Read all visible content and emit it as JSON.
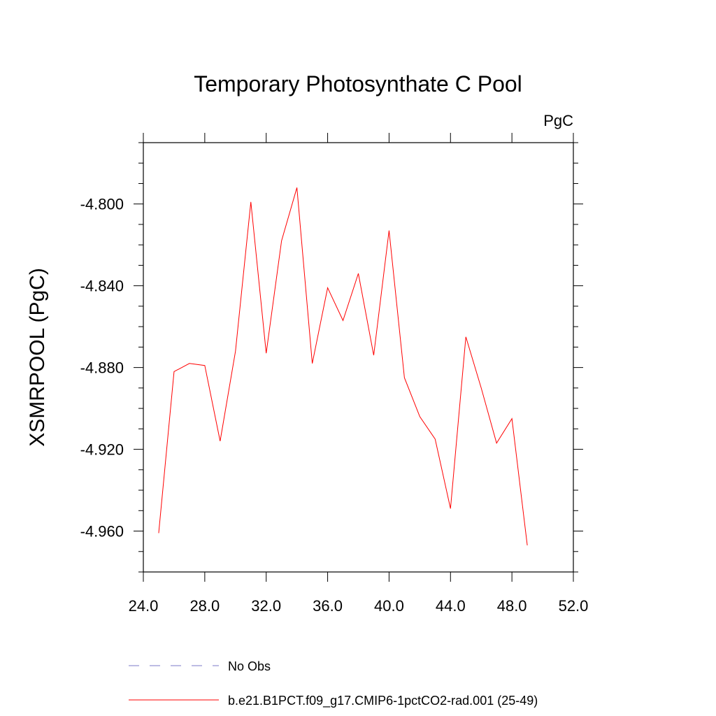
{
  "chart_data": {
    "type": "line",
    "title": "Temporary Photosynthate C Pool",
    "units_label": "PgC",
    "xlabel": "",
    "ylabel": "XSMRPOOL  (PgC)",
    "xlim": [
      24.0,
      52.0
    ],
    "ylim": [
      -4.98,
      -4.77
    ],
    "x_ticks": [
      "24.0",
      "28.0",
      "32.0",
      "36.0",
      "40.0",
      "44.0",
      "48.0",
      "52.0"
    ],
    "x_tick_values": [
      24,
      28,
      32,
      36,
      40,
      44,
      48,
      52
    ],
    "y_ticks": [
      "-4.800",
      "-4.840",
      "-4.880",
      "-4.920",
      "-4.960"
    ],
    "y_tick_values": [
      -4.8,
      -4.84,
      -4.88,
      -4.92,
      -4.96
    ],
    "grid": false,
    "legend_position": "bottom",
    "series": [
      {
        "name": "No Obs",
        "color": "#7b78c8",
        "dash": "dashed",
        "x": [],
        "y": []
      },
      {
        "name": "b.e21.B1PCT.f09_g17.CMIP6-1pctCO2-rad.001 (25-49)",
        "color": "#ff0000",
        "dash": "solid",
        "x": [
          25,
          26,
          27,
          28,
          29,
          30,
          31,
          32,
          33,
          34,
          35,
          36,
          37,
          38,
          39,
          40,
          41,
          42,
          43,
          44,
          45,
          46,
          47,
          48,
          49
        ],
        "y": [
          -4.961,
          -4.882,
          -4.878,
          -4.879,
          -4.916,
          -4.872,
          -4.799,
          -4.873,
          -4.818,
          -4.792,
          -4.878,
          -4.841,
          -4.857,
          -4.834,
          -4.874,
          -4.813,
          -4.885,
          -4.904,
          -4.915,
          -4.949,
          -4.865,
          -4.89,
          -4.917,
          -4.905,
          -4.967
        ]
      }
    ]
  }
}
